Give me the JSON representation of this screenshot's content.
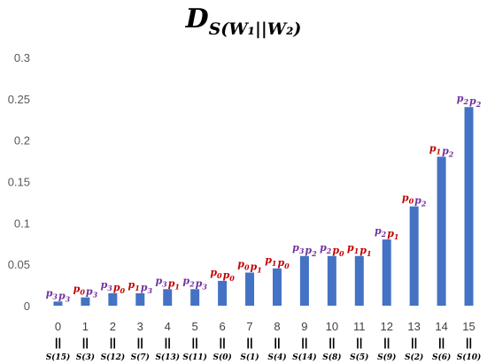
{
  "chart_data": {
    "type": "bar",
    "title": {
      "main": "D",
      "sub": "S(W₁||W₂)"
    },
    "ylim": [
      0,
      0.3
    ],
    "yticks": [
      "0",
      "0.05",
      "0.1",
      "0.15",
      "0.2",
      "0.25",
      "0.3"
    ],
    "grid": false,
    "bar_color": "#4472c4",
    "annotation_colors": {
      "p0": "#c00000",
      "p1": "#c00000",
      "p2": "#7030a0",
      "p3": "#7030a0"
    },
    "categories": [
      "0",
      "1",
      "2",
      "3",
      "4",
      "5",
      "6",
      "7",
      "8",
      "9",
      "10",
      "11",
      "12",
      "13",
      "14",
      "15"
    ],
    "sublabels": [
      "S(15)",
      "S(3)",
      "S(12)",
      "S(7)",
      "S(13)",
      "S(11)",
      "S(0)",
      "S(1)",
      "S(4)",
      "S(14)",
      "S(8)",
      "S(5)",
      "S(9)",
      "S(2)",
      "S(6)",
      "S(10)"
    ],
    "separator": "||",
    "values": [
      0.005,
      0.01,
      0.015,
      0.015,
      0.02,
      0.02,
      0.03,
      0.04,
      0.045,
      0.06,
      0.06,
      0.06,
      0.08,
      0.12,
      0.18,
      0.24
    ],
    "annotations": [
      [
        {
          "t": "p",
          "s": "3",
          "c": "p3"
        },
        {
          "t": "p",
          "s": "3",
          "c": "p3"
        }
      ],
      [
        {
          "t": "p",
          "s": "0",
          "c": "p0"
        },
        {
          "t": "p",
          "s": "3",
          "c": "p3"
        }
      ],
      [
        {
          "t": "p",
          "s": "3",
          "c": "p3"
        },
        {
          "t": "p",
          "s": "0",
          "c": "p0"
        }
      ],
      [
        {
          "t": "p",
          "s": "1",
          "c": "p1"
        },
        {
          "t": "p",
          "s": "3",
          "c": "p3"
        }
      ],
      [
        {
          "t": "p",
          "s": "3",
          "c": "p3"
        },
        {
          "t": "p",
          "s": "1",
          "c": "p1"
        }
      ],
      [
        {
          "t": "p",
          "s": "2",
          "c": "p2"
        },
        {
          "t": "p",
          "s": "3",
          "c": "p3"
        }
      ],
      [
        {
          "t": "p",
          "s": "0",
          "c": "p0"
        },
        {
          "t": "p",
          "s": "0",
          "c": "p0"
        }
      ],
      [
        {
          "t": "p",
          "s": "0",
          "c": "p0"
        },
        {
          "t": "p",
          "s": "1",
          "c": "p1"
        }
      ],
      [
        {
          "t": "p",
          "s": "1",
          "c": "p1"
        },
        {
          "t": "p",
          "s": "0",
          "c": "p0"
        }
      ],
      [
        {
          "t": "p",
          "s": "3",
          "c": "p3"
        },
        {
          "t": "p",
          "s": "2",
          "c": "p2"
        }
      ],
      [
        {
          "t": "p",
          "s": "2",
          "c": "p2"
        },
        {
          "t": "p",
          "s": "0",
          "c": "p0"
        }
      ],
      [
        {
          "t": "p",
          "s": "1",
          "c": "p1"
        },
        {
          "t": "p",
          "s": "1",
          "c": "p1"
        }
      ],
      [
        {
          "t": "p",
          "s": "2",
          "c": "p2"
        },
        {
          "t": "p",
          "s": "1",
          "c": "p1"
        }
      ],
      [
        {
          "t": "p",
          "s": "0",
          "c": "p0"
        },
        {
          "t": "p",
          "s": "2",
          "c": "p2"
        }
      ],
      [
        {
          "t": "p",
          "s": "1",
          "c": "p1"
        },
        {
          "t": "p",
          "s": "2",
          "c": "p2"
        }
      ],
      [
        {
          "t": "p",
          "s": "2",
          "c": "p2"
        },
        {
          "t": "p",
          "s": "2",
          "c": "p2"
        }
      ]
    ]
  }
}
